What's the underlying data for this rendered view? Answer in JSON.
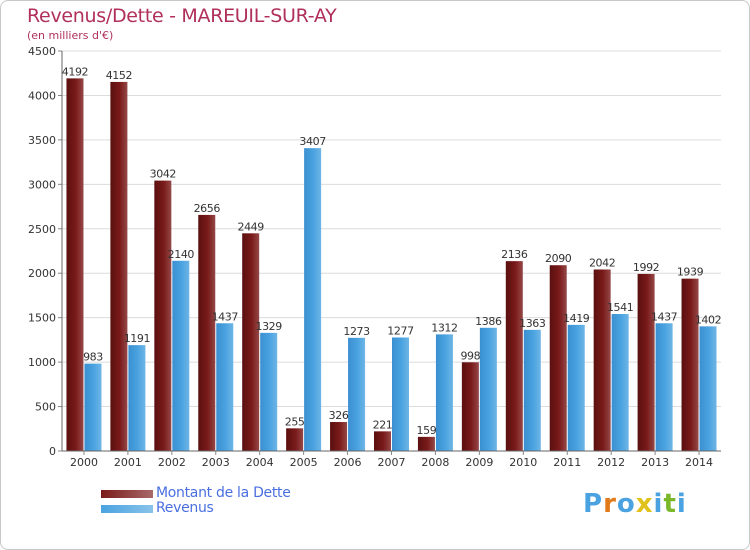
{
  "header": {
    "title": "Revenus/Dette - MAREUIL-SUR-AY",
    "subtitle": "(en milliers d'€)"
  },
  "legend": {
    "items": [
      {
        "label": "Montant de la Dette",
        "color": "#7a1a1a"
      },
      {
        "label": "Revenus",
        "color": "#4aa3e0"
      }
    ]
  },
  "logo": {
    "text": "Proxiti"
  },
  "chart_data": {
    "type": "bar",
    "title": "Revenus/Dette - MAREUIL-SUR-AY",
    "subtitle": "(en milliers d'€)",
    "xlabel": "",
    "ylabel": "",
    "ylim": [
      0,
      4500
    ],
    "yticks": [
      0,
      500,
      1000,
      1500,
      2000,
      2500,
      3000,
      3500,
      4000,
      4500
    ],
    "grid": true,
    "legend_position": "bottom-left",
    "categories": [
      "2000",
      "2001",
      "2002",
      "2003",
      "2004",
      "2005",
      "2006",
      "2007",
      "2008",
      "2009",
      "2010",
      "2011",
      "2012",
      "2013",
      "2014"
    ],
    "series": [
      {
        "name": "Montant de la Dette",
        "color": "#7a1a1a",
        "values": [
          4192,
          4152,
          3042,
          2656,
          2449,
          255,
          326,
          221,
          159,
          998,
          2136,
          2090,
          2042,
          1992,
          1939
        ]
      },
      {
        "name": "Revenus",
        "color": "#4aa3e0",
        "values": [
          983,
          1191,
          2140,
          1437,
          1329,
          3407,
          1273,
          1277,
          1312,
          1386,
          1363,
          1419,
          1541,
          1437,
          1402
        ]
      }
    ]
  }
}
